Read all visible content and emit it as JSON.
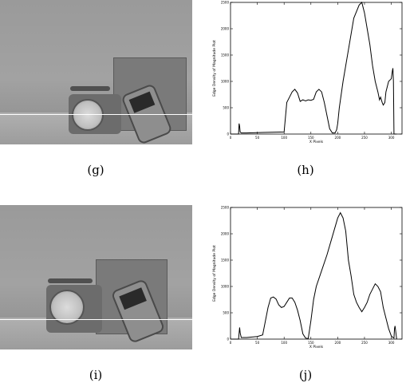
{
  "captions": {
    "g": "(g)",
    "h": "(h)",
    "i": "(i)",
    "j": "(j)"
  },
  "chart_data": [
    {
      "type": "line",
      "panel": "(h)",
      "xlabel": "X Pixels",
      "ylabel": "Edge Density of Magnitude Plot",
      "xlim": [
        0,
        320
      ],
      "ylim": [
        0,
        2500
      ],
      "xticks": [
        0,
        50,
        100,
        150,
        200,
        250,
        300
      ],
      "yticks": [
        0,
        500,
        1000,
        1500,
        2000,
        2500
      ],
      "grid": false,
      "x": [
        0,
        10,
        15,
        16,
        17,
        18,
        20,
        30,
        60,
        100,
        105,
        110,
        115,
        120,
        125,
        130,
        135,
        140,
        145,
        150,
        155,
        160,
        165,
        170,
        175,
        180,
        185,
        190,
        195,
        198,
        200,
        203,
        210,
        220,
        230,
        240,
        245,
        250,
        255,
        260,
        265,
        270,
        275,
        278,
        280,
        283,
        285,
        288,
        290,
        295,
        300,
        302,
        303,
        304,
        305,
        307,
        310
      ],
      "y": [
        0,
        0,
        0,
        200,
        150,
        40,
        20,
        20,
        30,
        40,
        600,
        700,
        800,
        850,
        780,
        620,
        650,
        630,
        650,
        640,
        660,
        800,
        850,
        800,
        600,
        350,
        100,
        20,
        20,
        80,
        200,
        500,
        1000,
        1600,
        2200,
        2450,
        2500,
        2300,
        2000,
        1700,
        1300,
        1000,
        800,
        650,
        700,
        600,
        550,
        600,
        800,
        1000,
        1050,
        1200,
        1250,
        1000,
        0,
        0,
        0
      ]
    },
    {
      "type": "line",
      "panel": "(j)",
      "xlabel": "X Pixels",
      "ylabel": "Edge Density of Magnitude Plot",
      "xlim": [
        0,
        320
      ],
      "ylim": [
        0,
        2500
      ],
      "xticks": [
        0,
        50,
        100,
        150,
        200,
        250,
        300
      ],
      "yticks": [
        0,
        500,
        1000,
        1500,
        2000,
        2500
      ],
      "grid": false,
      "x": [
        0,
        10,
        15,
        17,
        18,
        20,
        30,
        50,
        60,
        70,
        75,
        80,
        85,
        90,
        95,
        100,
        105,
        110,
        115,
        120,
        125,
        130,
        135,
        140,
        145,
        150,
        155,
        160,
        170,
        180,
        190,
        200,
        205,
        210,
        215,
        220,
        225,
        230,
        235,
        240,
        245,
        250,
        255,
        260,
        265,
        270,
        275,
        280,
        285,
        290,
        295,
        300,
        303,
        305,
        306,
        307,
        310
      ],
      "y": [
        0,
        0,
        0,
        220,
        120,
        30,
        30,
        50,
        80,
        600,
        780,
        800,
        760,
        650,
        600,
        620,
        700,
        780,
        780,
        700,
        550,
        350,
        100,
        20,
        10,
        350,
        750,
        1000,
        1300,
        1600,
        1950,
        2300,
        2400,
        2300,
        2050,
        1500,
        1200,
        850,
        700,
        600,
        520,
        600,
        700,
        850,
        950,
        1050,
        1000,
        900,
        600,
        400,
        200,
        60,
        30,
        20,
        200,
        250,
        0
      ]
    }
  ]
}
